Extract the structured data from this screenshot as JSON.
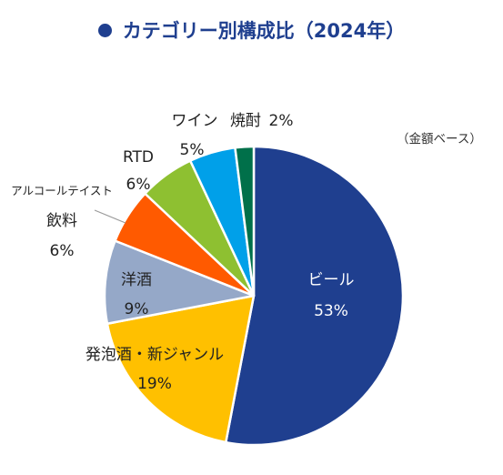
{
  "title": "カテゴリー別構成比（2024年）",
  "subtitle": "（金額ベース）",
  "colors": {
    "title_text": "#1f3f8f",
    "title_dot": "#1f3f8f"
  },
  "chart_data": {
    "type": "pie",
    "title": "カテゴリー別構成比（2024年）",
    "subtitle": "（金額ベース）",
    "unit": "%",
    "start_angle_deg": 0,
    "direction": "clockwise",
    "slices": [
      {
        "label": "ビール",
        "value": 53,
        "value_label": "53%",
        "color": "#1f3f8f"
      },
      {
        "label": "発泡酒・新ジャンル",
        "value": 19,
        "value_label": "19%",
        "color": "#ffc000"
      },
      {
        "label": "洋酒",
        "value": 9,
        "value_label": "9%",
        "color": "#95a8c8"
      },
      {
        "label_line1": "アルコールテイスト",
        "label_line2": "飲料",
        "value": 6,
        "value_label": "6%",
        "color": "#ff5a00"
      },
      {
        "label": "RTD",
        "value": 6,
        "value_label": "6%",
        "color": "#8ec031"
      },
      {
        "label": "ワイン",
        "value": 5,
        "value_label": "5%",
        "color": "#00a0e9"
      },
      {
        "label": "焼酎",
        "value": 2,
        "value_label": "2%",
        "color": "#00704a"
      }
    ]
  }
}
